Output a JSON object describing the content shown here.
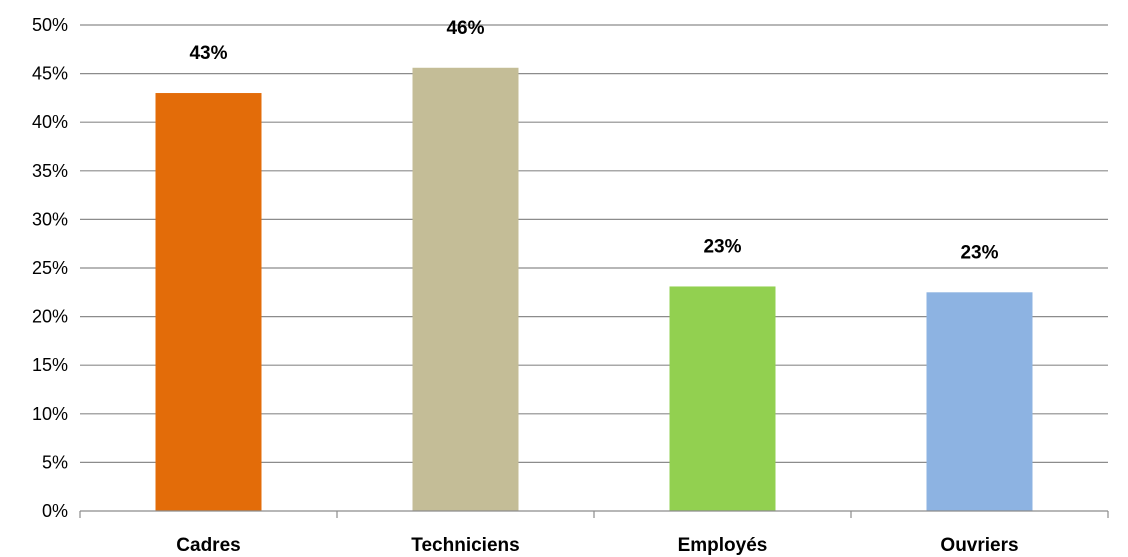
{
  "chart_data": {
    "type": "bar",
    "categories": [
      "Cadres",
      "Techniciens",
      "Employés",
      "Ouvriers"
    ],
    "values": [
      43,
      45.6,
      23.1,
      22.5
    ],
    "data_labels": [
      "43%",
      "46%",
      "23%",
      "23%"
    ],
    "colors": [
      "#e36c09",
      "#c4bd97",
      "#92d050",
      "#8db3e2"
    ],
    "ylim": [
      0,
      50
    ],
    "ytick_step": 5,
    "ytick_labels": [
      "0%",
      "5%",
      "10%",
      "15%",
      "20%",
      "25%",
      "30%",
      "35%",
      "40%",
      "45%",
      "50%"
    ],
    "grid": true,
    "legend": "none"
  }
}
